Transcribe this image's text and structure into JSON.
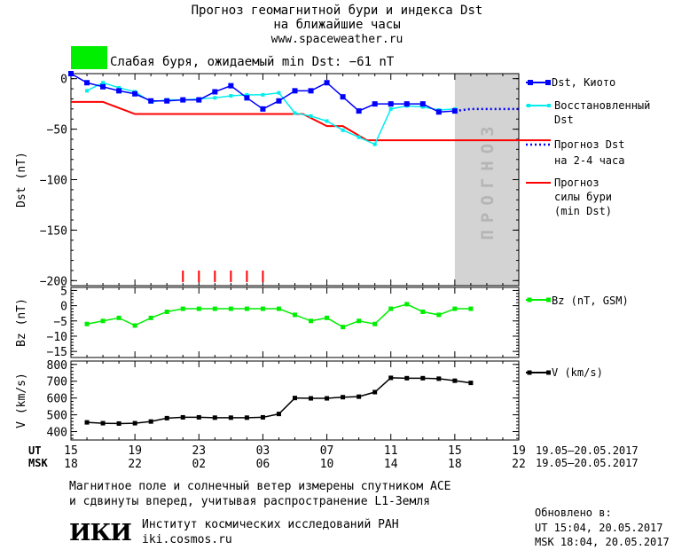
{
  "header": {
    "title_line1": "Прогноз геомагнитной бури и индекса Dst",
    "title_line2": "на ближайшие часы",
    "url": "www.spaceweather.ru",
    "status_color": "#00ee00",
    "status_text": "Слабая буря, ожидаемый min Dst: −61 nT"
  },
  "forecast_band_label": "ПРОГНОЗ",
  "legend": {
    "dst_kyoto": "Dst, Киото",
    "restored_1": "Восстановленный",
    "restored_2": "Dst",
    "forecast_1": "Прогноз Dst",
    "forecast_2": "на 2-4 часа",
    "storm_1": "Прогноз",
    "storm_2": "силы бури",
    "storm_3": "(min Dst)",
    "bz": "Bz (nT, GSM)",
    "v": "V (km/s)"
  },
  "time_axis": {
    "ut_label": "UT",
    "msk_label": "MSK",
    "ut_ticks": [
      "15",
      "19",
      "23",
      "03",
      "07",
      "11",
      "15",
      "19"
    ],
    "msk_ticks": [
      "18",
      "22",
      "02",
      "06",
      "10",
      "14",
      "18",
      "22"
    ],
    "date_range_ut": "19.05–20.05.2017",
    "date_range_msk": "19.05–20.05.2017"
  },
  "footer": {
    "note_1": "Магнитное поле и солнечный ветер измерены спутником ACE",
    "note_2": "и сдвинуты вперед, учитывая распространение L1-Земля",
    "logo": "ИКИ",
    "institute": "Институт космических исследований РАН",
    "institute_url": "iki.cosmos.ru",
    "updated_label": "Обновлено в:",
    "updated_ut": "UT  15:04, 20.05.2017",
    "updated_msk": "MSK 18:04, 20.05.2017"
  },
  "chart_data": [
    {
      "type": "line",
      "ylabel": "Dst (nT)",
      "ylim": [
        -205,
        5
      ],
      "yticks": [
        0,
        -50,
        -100,
        -150,
        -200
      ],
      "x_hours_ut": [
        15,
        16,
        17,
        18,
        19,
        20,
        21,
        22,
        23,
        24,
        25,
        26,
        27,
        28,
        29,
        30,
        31,
        32,
        33,
        34,
        35,
        36,
        37,
        38,
        39
      ],
      "series": [
        {
          "name": "Dst, Киото",
          "color": "#0000ff",
          "values": [
            5,
            -4,
            -8,
            -12,
            -15,
            -22,
            -22,
            -21,
            -21,
            -13,
            -7,
            -19,
            -30,
            -22,
            -12,
            -12,
            -4,
            -18,
            -32,
            -25,
            -25,
            -25,
            -25,
            -33,
            -32
          ]
        },
        {
          "name": "Восстановленный Dst",
          "color": "#00eeee",
          "values": [
            null,
            -12,
            -4,
            -9,
            -13,
            -23,
            -21,
            -21,
            -20,
            -19,
            -17,
            -16,
            -16,
            -14,
            -34,
            -37,
            -42,
            -51,
            -58,
            -65,
            -30,
            -27,
            -28,
            -31,
            -30
          ]
        },
        {
          "name": "Прогноз Dst на 2-4 часа",
          "color": "#0000ff",
          "dotted": true,
          "x_hours_ut": [
            39,
            40,
            41,
            42,
            43
          ],
          "values": [
            -32,
            -30,
            -30,
            -30,
            -30
          ]
        },
        {
          "name": "Прогноз силы бури (min Dst)",
          "color": "#ff0000",
          "x_hours_ut": [
            15,
            17,
            18,
            19,
            29.5,
            31,
            32,
            33.5,
            35,
            45
          ],
          "values": [
            -23,
            -23,
            -29,
            -35,
            -35,
            -47,
            -47,
            -61,
            -61,
            -61
          ]
        }
      ],
      "markers_x_hours_ut": [
        22,
        23,
        24,
        25,
        26,
        27
      ],
      "forecast_region_x_hours_ut": [
        39,
        43
      ]
    },
    {
      "type": "line",
      "ylabel": "Bz (nT)",
      "ylim": [
        -17,
        6
      ],
      "yticks": [
        5,
        0,
        -5,
        -10,
        -15
      ],
      "series": [
        {
          "name": "Bz (nT, GSM)",
          "color": "#00ee00",
          "x_hours_ut": [
            16,
            17,
            18,
            19,
            20,
            21,
            22,
            23,
            24,
            25,
            26,
            27,
            28,
            29,
            30,
            31,
            32,
            33,
            34,
            35,
            36,
            37,
            38,
            39,
            40
          ],
          "values": [
            -6,
            -5,
            -4,
            -6.5,
            -4,
            -2,
            -1,
            -1,
            -1,
            -1,
            -1,
            -1,
            -1,
            -3,
            -5,
            -4,
            -7,
            -5,
            -6,
            -1,
            0.5,
            -2,
            -3,
            -1,
            -1
          ]
        }
      ]
    },
    {
      "type": "line",
      "ylabel": "V (km/s)",
      "ylim": [
        350,
        820
      ],
      "yticks": [
        800,
        700,
        600,
        500,
        400
      ],
      "series": [
        {
          "name": "V (km/s)",
          "color": "#000000",
          "x_hours_ut": [
            16,
            17,
            18,
            19,
            20,
            21,
            22,
            23,
            24,
            25,
            26,
            27,
            28,
            29,
            30,
            31,
            32,
            33,
            34,
            35,
            36,
            37,
            38,
            39,
            40
          ],
          "values": [
            455,
            450,
            448,
            450,
            460,
            480,
            485,
            485,
            483,
            483,
            483,
            485,
            505,
            600,
            598,
            598,
            605,
            608,
            635,
            720,
            718,
            718,
            715,
            703,
            690
          ]
        }
      ]
    }
  ]
}
